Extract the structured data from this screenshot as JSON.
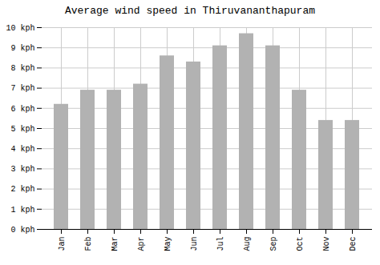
{
  "chart_data": {
    "type": "bar",
    "title": "Average wind speed in Thiruvananthapuram",
    "categories": [
      "Jan",
      "Feb",
      "Mar",
      "Apr",
      "May",
      "Jun",
      "Jul",
      "Aug",
      "Sep",
      "Oct",
      "Nov",
      "Dec"
    ],
    "values": [
      6.2,
      6.9,
      6.9,
      7.2,
      8.6,
      8.3,
      9.1,
      9.7,
      9.1,
      6.9,
      5.4,
      5.4
    ],
    "color": "#b2b2b2",
    "ylim": [
      0,
      10
    ],
    "yticks": [
      {
        "value": 0,
        "label": "0 kph"
      },
      {
        "value": 1,
        "label": "1 kph"
      },
      {
        "value": 2,
        "label": "2 kph"
      },
      {
        "value": 3,
        "label": "3 kph"
      },
      {
        "value": 4,
        "label": "4 kph"
      },
      {
        "value": 5,
        "label": "5 kph"
      },
      {
        "value": 6,
        "label": "6 kph"
      },
      {
        "value": 7,
        "label": "7 kph"
      },
      {
        "value": 8,
        "label": "8 kph"
      },
      {
        "value": 9,
        "label": "9 kph"
      },
      {
        "value": 10,
        "label": "10 kph"
      }
    ],
    "grid": true
  }
}
